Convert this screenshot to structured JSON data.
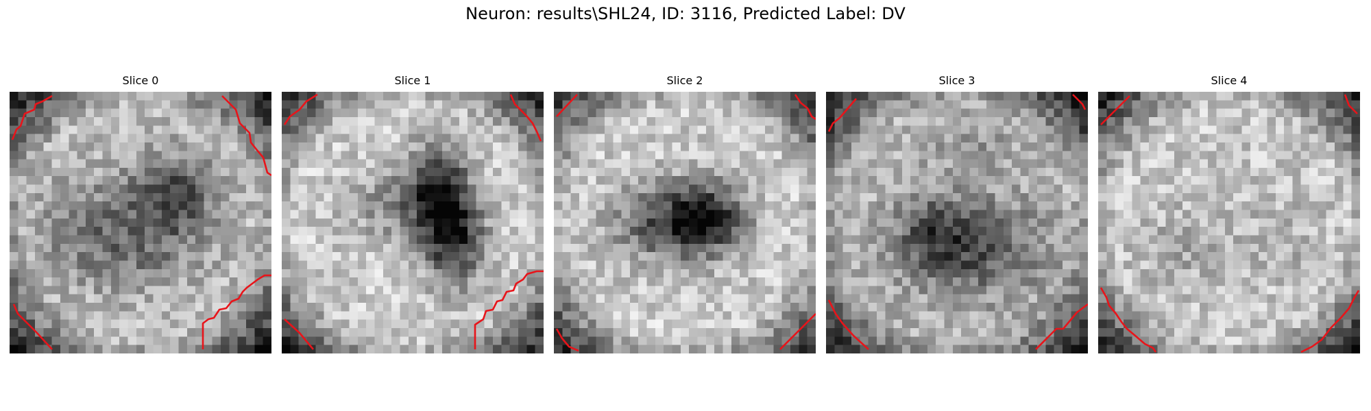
{
  "figure": {
    "title": "Neuron: results\\SHL24, ID: 3116, Predicted Label: DV"
  },
  "slices": [
    {
      "title": "Slice 0"
    },
    {
      "title": "Slice 1"
    },
    {
      "title": "Slice 2"
    },
    {
      "title": "Slice 3"
    },
    {
      "title": "Slice 4"
    }
  ],
  "colors": {
    "contour": "#e8141a",
    "background": "#ffffff"
  }
}
